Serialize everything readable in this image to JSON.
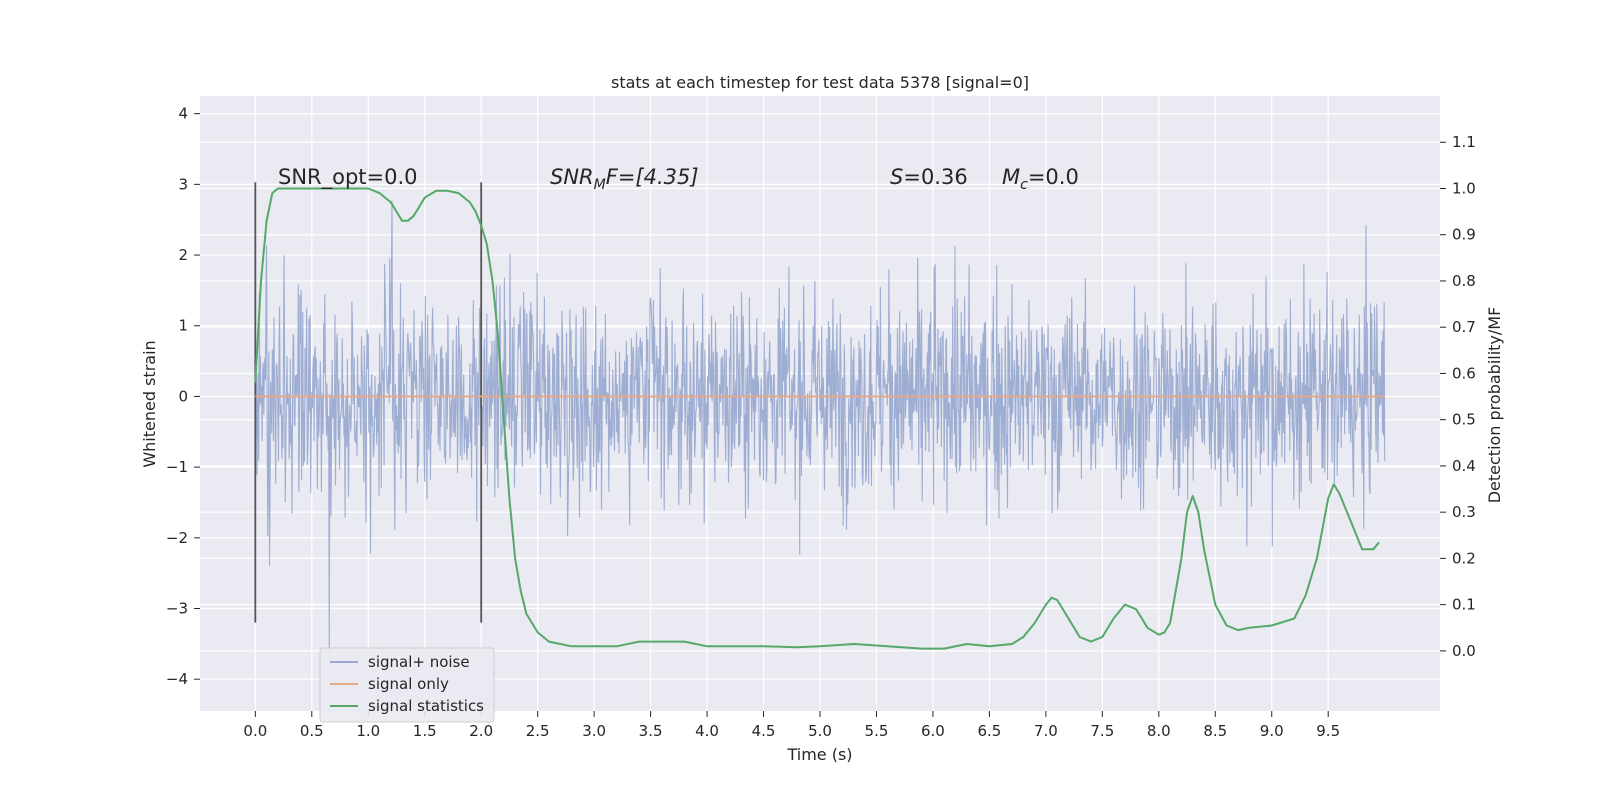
{
  "chart_data": {
    "type": "line",
    "title": "stats at each timestep for test data 5378 [signal=0]",
    "xlabel": "Time (s)",
    "ylabel_left": "Whitened strain",
    "ylabel_right": "Detection probability/MF",
    "xlim": [
      -0.49,
      10.49
    ],
    "ylim_left": [
      -4.45,
      4.25
    ],
    "ylim_right": [
      -0.13,
      1.2
    ],
    "x_ticks": [
      "0.0",
      "0.5",
      "1.0",
      "1.5",
      "2.0",
      "2.5",
      "3.0",
      "3.5",
      "4.0",
      "4.5",
      "5.0",
      "5.5",
      "6.0",
      "6.5",
      "7.0",
      "7.5",
      "8.0",
      "8.5",
      "9.0",
      "9.5"
    ],
    "y_ticks_left": [
      "4",
      "3",
      "2",
      "1",
      "0",
      "−1",
      "−2",
      "−3",
      "−4"
    ],
    "y_tick_values_left": [
      4,
      3,
      2,
      1,
      0,
      -1,
      -2,
      -3,
      -4
    ],
    "y_ticks_right": [
      "1.1",
      "1.0",
      "0.9",
      "0.8",
      "0.7",
      "0.6",
      "0.5",
      "0.4",
      "0.3",
      "0.2",
      "0.1",
      "0.0"
    ],
    "y_tick_values_right": [
      1.1,
      1.0,
      0.9,
      0.8,
      0.7,
      0.6,
      0.5,
      0.4,
      0.3,
      0.2,
      0.1,
      0.0
    ],
    "grid": true,
    "legend_position": "lower-left",
    "annotations": {
      "snr_opt": "SNR_opt=0.0",
      "snr_mf_main": "SNR",
      "snr_mf_sub": "M",
      "snr_mf_tail": "F=[4.35]",
      "s_main": "S",
      "s_tail": "=0.36",
      "mc_main": "M",
      "mc_sub": "c",
      "mc_tail": "=0.0"
    },
    "vertical_markers": [
      0.0,
      2.0
    ],
    "series": [
      {
        "name": "signal+ noise",
        "color": "#9aaad0",
        "axis": "left",
        "description_range": [
          0,
          10
        ],
        "envelope_upper_typical": 1.9,
        "envelope_lower_typical": -1.8
      },
      {
        "name": "signal only",
        "color": "#e8a785",
        "axis": "left",
        "x": [
          0,
          10
        ],
        "y": [
          0,
          0
        ]
      },
      {
        "name": "signal statistics",
        "color": "#55a868",
        "axis": "right",
        "x": [
          0.0,
          0.05,
          0.1,
          0.15,
          0.2,
          0.3,
          0.5,
          0.7,
          0.9,
          1.0,
          1.1,
          1.2,
          1.3,
          1.35,
          1.4,
          1.45,
          1.5,
          1.6,
          1.7,
          1.8,
          1.9,
          1.95,
          2.0,
          2.05,
          2.1,
          2.15,
          2.2,
          2.25,
          2.3,
          2.35,
          2.4,
          2.5,
          2.6,
          2.8,
          3.0,
          3.2,
          3.4,
          3.6,
          3.8,
          4.0,
          4.2,
          4.5,
          4.8,
          5.0,
          5.3,
          5.6,
          5.9,
          6.1,
          6.3,
          6.5,
          6.7,
          6.8,
          6.9,
          7.0,
          7.05,
          7.1,
          7.2,
          7.3,
          7.4,
          7.5,
          7.6,
          7.7,
          7.8,
          7.9,
          8.0,
          8.05,
          8.1,
          8.2,
          8.25,
          8.3,
          8.35,
          8.4,
          8.5,
          8.6,
          8.7,
          8.8,
          9.0,
          9.2,
          9.3,
          9.4,
          9.5,
          9.55,
          9.6,
          9.7,
          9.8,
          9.9,
          9.95
        ],
        "y": [
          0.58,
          0.8,
          0.93,
          0.99,
          1.0,
          1.0,
          1.0,
          1.0,
          1.0,
          1.0,
          0.99,
          0.97,
          0.93,
          0.93,
          0.94,
          0.96,
          0.98,
          0.995,
          0.995,
          0.99,
          0.97,
          0.95,
          0.92,
          0.88,
          0.8,
          0.68,
          0.5,
          0.33,
          0.2,
          0.13,
          0.08,
          0.04,
          0.02,
          0.01,
          0.01,
          0.01,
          0.02,
          0.02,
          0.02,
          0.01,
          0.01,
          0.01,
          0.008,
          0.01,
          0.015,
          0.01,
          0.005,
          0.005,
          0.015,
          0.01,
          0.015,
          0.03,
          0.06,
          0.1,
          0.115,
          0.11,
          0.07,
          0.03,
          0.02,
          0.03,
          0.07,
          0.1,
          0.09,
          0.05,
          0.035,
          0.04,
          0.06,
          0.2,
          0.3,
          0.335,
          0.3,
          0.22,
          0.1,
          0.055,
          0.045,
          0.05,
          0.055,
          0.07,
          0.12,
          0.2,
          0.33,
          0.36,
          0.34,
          0.28,
          0.22,
          0.22,
          0.235
        ]
      }
    ]
  }
}
